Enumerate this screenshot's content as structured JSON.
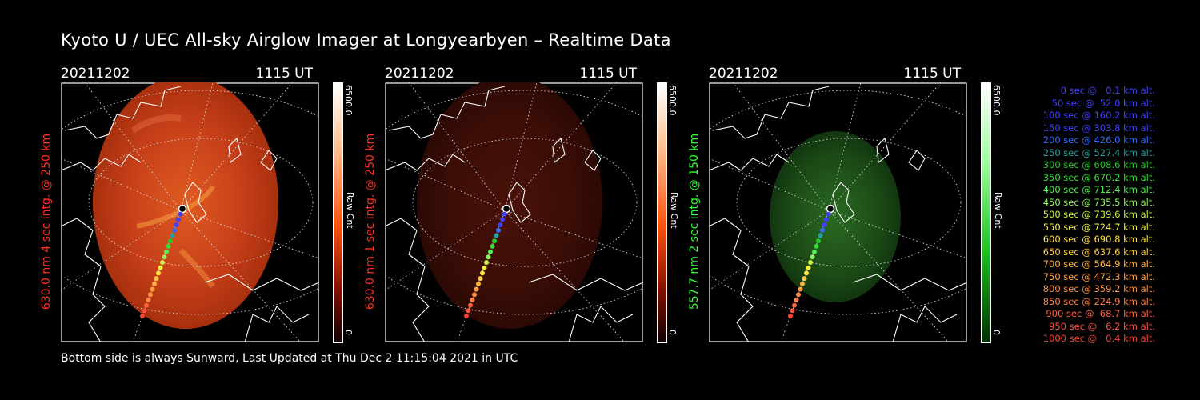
{
  "title": "Kyoto U / UEC All-sky Airglow Imager at Longyearbyen – Realtime Data",
  "footer": "Bottom side is always Sunward, Last Updated at Thu Dec  2 11:15:04 2021 in UTC",
  "panels": [
    {
      "date": "20211202",
      "time": "1115 UT",
      "ylabel": "630.0 nm 4 sec intg. @ 250 km",
      "label_color": "#ff3020",
      "cbar_max": "6500.0",
      "cbar_min": "0",
      "cbar_unit": "Raw Cnt",
      "tint": "red",
      "brightness": "bright"
    },
    {
      "date": "20211202",
      "time": "1115 UT",
      "ylabel": "630.0 nm 1 sec intg. @ 250 km",
      "label_color": "#ff3020",
      "cbar_max": "6500.0",
      "cbar_min": "0",
      "cbar_unit": "Raw Cnt",
      "tint": "red",
      "brightness": "dim"
    },
    {
      "date": "20211202",
      "time": "1115 UT",
      "ylabel": "557.7 nm 2 sec intg. @ 150 km",
      "label_color": "#30ff30",
      "cbar_max": "6500.0",
      "cbar_min": "0",
      "cbar_unit": "Raw Cnt",
      "tint": "green",
      "brightness": "dim"
    }
  ],
  "legend": [
    {
      "text": "0 sec @   0.1 km alt.",
      "color": "#4040ff"
    },
    {
      "text": "50 sec @  52.0 km alt.",
      "color": "#4040ff"
    },
    {
      "text": "100 sec @ 160.2 km alt.",
      "color": "#4040ff"
    },
    {
      "text": "150 sec @ 303.8 km alt.",
      "color": "#4040ff"
    },
    {
      "text": "200 sec @ 426.0 km alt.",
      "color": "#2e6cff"
    },
    {
      "text": "250 sec @ 527.4 km alt.",
      "color": "#20a0a0"
    },
    {
      "text": "300 sec @ 608.6 km alt.",
      "color": "#28c828"
    },
    {
      "text": "350 sec @ 670.2 km alt.",
      "color": "#30e030"
    },
    {
      "text": "400 sec @ 712.4 km alt.",
      "color": "#50f050"
    },
    {
      "text": "450 sec @ 735.5 km alt.",
      "color": "#90f060"
    },
    {
      "text": "500 sec @ 739.6 km alt.",
      "color": "#c8f040"
    },
    {
      "text": "550 sec @ 724.7 km alt.",
      "color": "#f0f040"
    },
    {
      "text": "600 sec @ 690.8 km alt.",
      "color": "#ffe040"
    },
    {
      "text": "650 sec @ 637.6 km alt.",
      "color": "#ffc840"
    },
    {
      "text": "700 sec @ 564.9 km alt.",
      "color": "#ffb040"
    },
    {
      "text": "750 sec @ 472.3 km alt.",
      "color": "#ffa040"
    },
    {
      "text": "800 sec @ 359.2 km alt.",
      "color": "#ff9040"
    },
    {
      "text": "850 sec @ 224.9 km alt.",
      "color": "#ff8040"
    },
    {
      "text": "900 sec @  68.7 km alt.",
      "color": "#ff6040"
    },
    {
      "text": "950 sec @   6.2 km alt.",
      "color": "#ff5040"
    },
    {
      "text": "1000 sec @   0.4 km alt.",
      "color": "#ff4030"
    }
  ]
}
